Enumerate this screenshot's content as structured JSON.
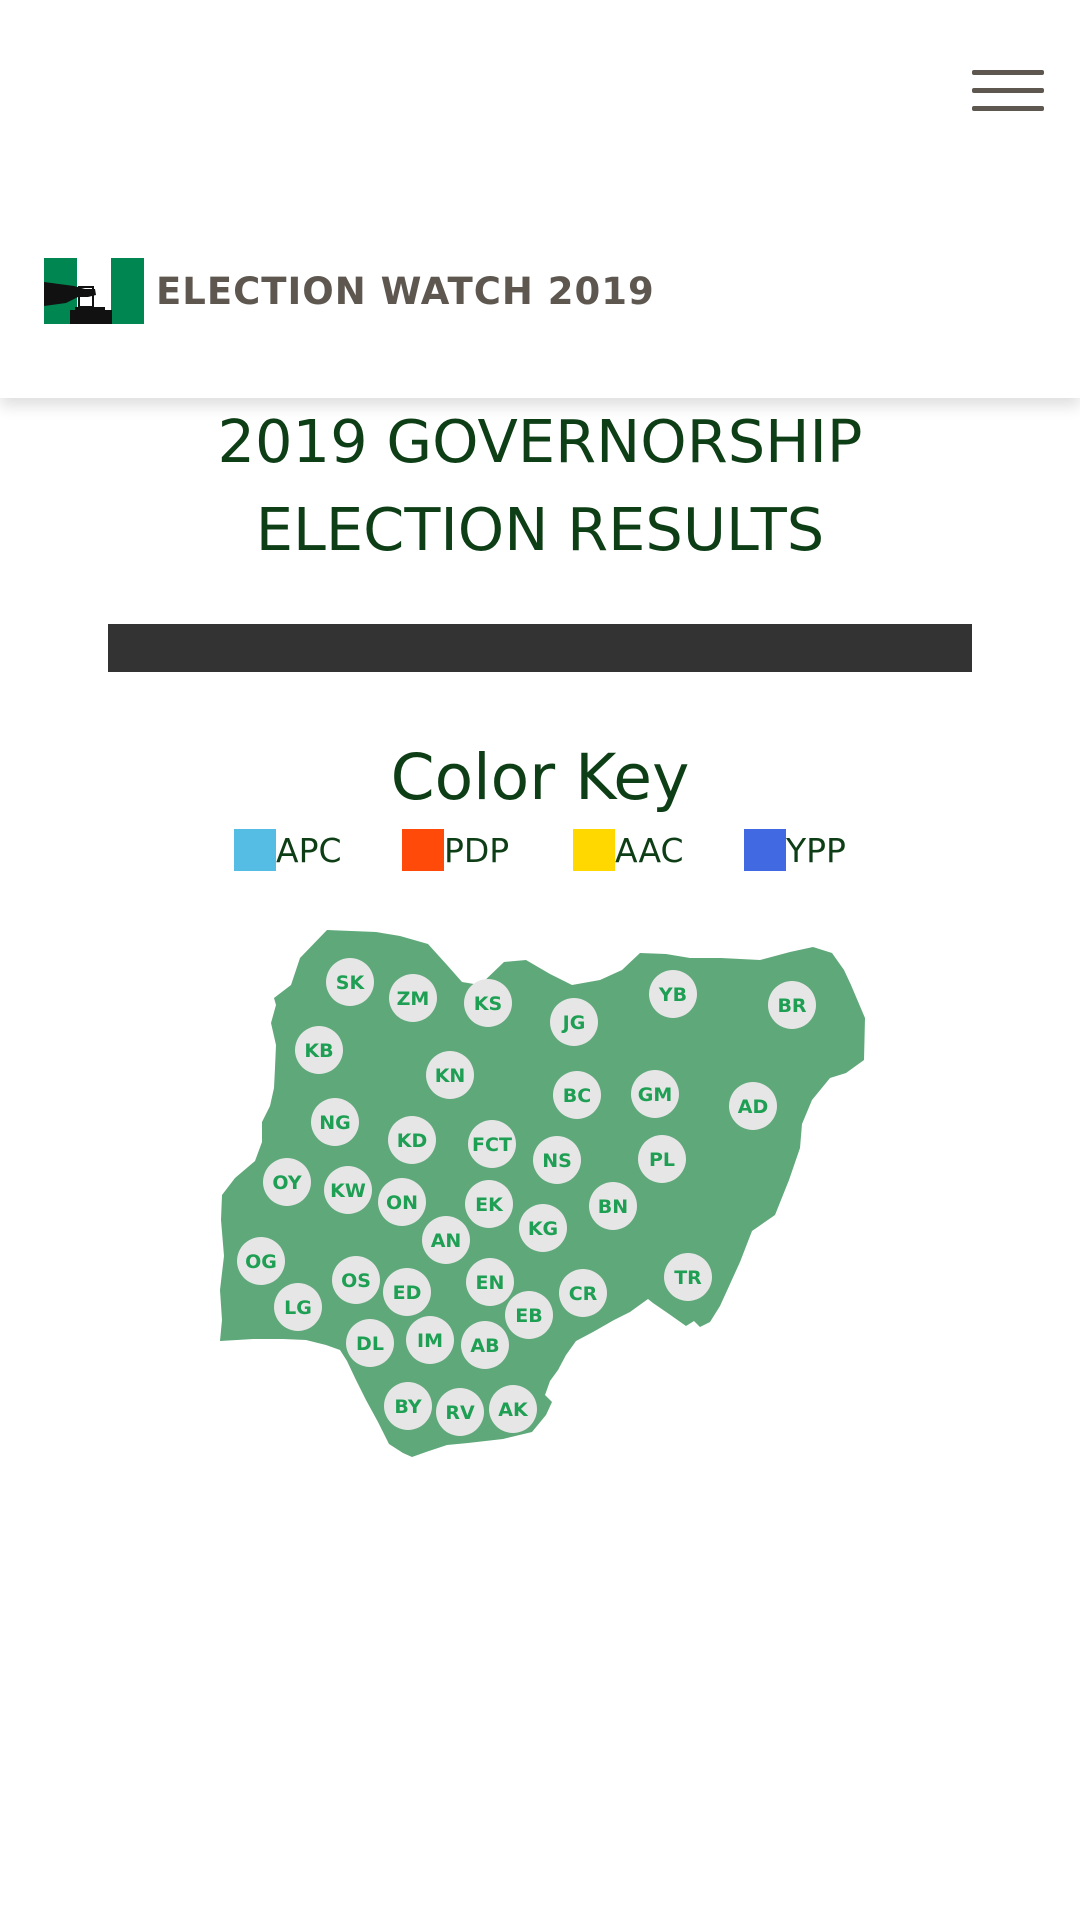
{
  "header": {
    "brand_title": "ELECTION WATCH 2019",
    "logo_icon": "ballot-box-flag-icon",
    "menu_icon": "hamburger-menu-icon",
    "flag_green": "#008751"
  },
  "main": {
    "title_line1": "2019 GOVERNORSHIP",
    "title_line2": "ELECTION RESULTS",
    "progress_bar_color": "#333333"
  },
  "color_key": {
    "heading": "Color Key",
    "items": [
      {
        "label": "APC",
        "color": "#55bde3"
      },
      {
        "label": "PDP",
        "color": "#ff4a0a"
      },
      {
        "label": "AAC",
        "color": "#ffd800"
      },
      {
        "label": "YPP",
        "color": "#4169e1"
      }
    ]
  },
  "map": {
    "country_fill": "#5fa87a",
    "marker_fill": "#e6e6e6",
    "label_color": "#1f9f54",
    "states": [
      "SK",
      "ZM",
      "KS",
      "JG",
      "YB",
      "BR",
      "KB",
      "KN",
      "BC",
      "GM",
      "AD",
      "NG",
      "KD",
      "FCT",
      "NS",
      "PL",
      "OY",
      "KW",
      "ON",
      "EK",
      "KG",
      "BN",
      "AN",
      "OG",
      "OS",
      "ED",
      "EN",
      "CR",
      "TR",
      "LG",
      "EB",
      "DL",
      "IM",
      "AB",
      "BY",
      "RV",
      "AK"
    ]
  }
}
